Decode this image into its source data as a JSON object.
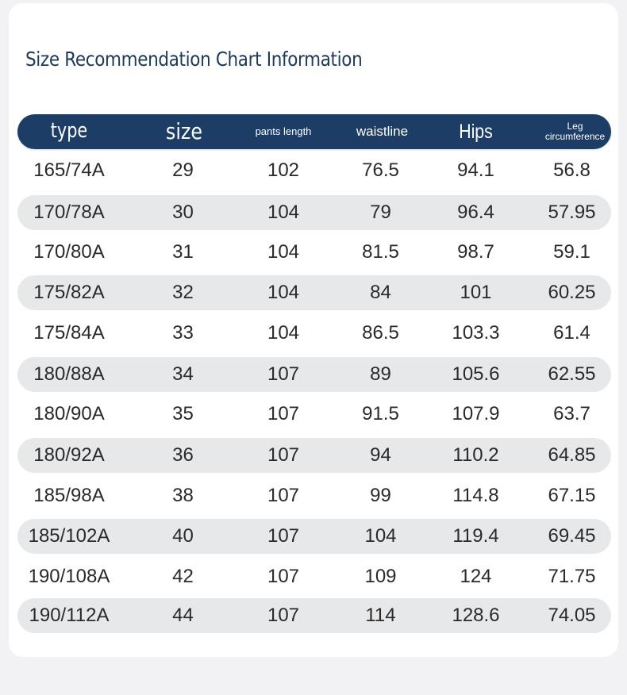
{
  "title": "Size Recommendation Chart Information",
  "header": {
    "type": "type",
    "size": "size",
    "pants_length": "pants length",
    "waistline": "waistline",
    "hips": "Hips",
    "leg_1": "Leg",
    "leg_2": "circumference"
  },
  "rows": [
    [
      "165/74A",
      "29",
      "102",
      "76.5",
      "94.1",
      "56.8"
    ],
    [
      "170/78A",
      "30",
      "104",
      "79",
      "96.4",
      "57.95"
    ],
    [
      "170/80A",
      "31",
      "104",
      "81.5",
      "98.7",
      "59.1"
    ],
    [
      "175/82A",
      "32",
      "104",
      "84",
      "101",
      "60.25"
    ],
    [
      "175/84A",
      "33",
      "104",
      "86.5",
      "103.3",
      "61.4"
    ],
    [
      "180/88A",
      "34",
      "107",
      "89",
      "105.6",
      "62.55"
    ],
    [
      "180/90A",
      "35",
      "107",
      "91.5",
      "107.9",
      "63.7"
    ],
    [
      "180/92A",
      "36",
      "107",
      "94",
      "110.2",
      "64.85"
    ],
    [
      "185/98A",
      "38",
      "107",
      "99",
      "114.8",
      "67.15"
    ],
    [
      "185/102A",
      "40",
      "107",
      "104",
      "119.4",
      "69.45"
    ],
    [
      "190/108A",
      "42",
      "107",
      "109",
      "124",
      "71.75"
    ],
    [
      "190/112A",
      "44",
      "107",
      "114",
      "128.6",
      "74.05"
    ]
  ]
}
